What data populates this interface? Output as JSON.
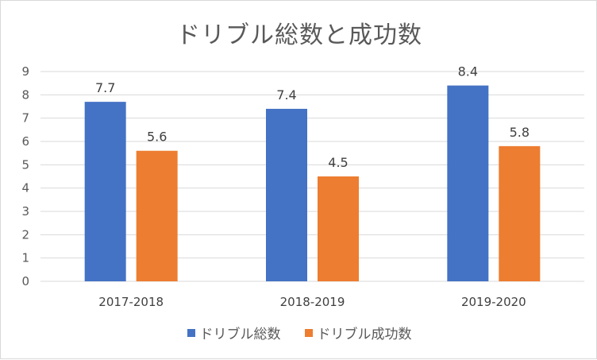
{
  "chart_data": {
    "type": "bar",
    "title": "ドリブル総数と成功数",
    "categories": [
      "2017-2018",
      "2018-2019",
      "2019-2020"
    ],
    "series": [
      {
        "name": "ドリブル総数",
        "color": "#4472c4",
        "values": [
          7.7,
          7.4,
          8.4
        ]
      },
      {
        "name": "ドリブル成功数",
        "color": "#ed7d31",
        "values": [
          5.6,
          4.5,
          5.8
        ]
      }
    ],
    "ylim": [
      0,
      9
    ],
    "yticks": [
      0,
      1,
      2,
      3,
      4,
      5,
      6,
      7,
      8,
      9
    ],
    "grid": true,
    "legend_position": "bottom"
  }
}
